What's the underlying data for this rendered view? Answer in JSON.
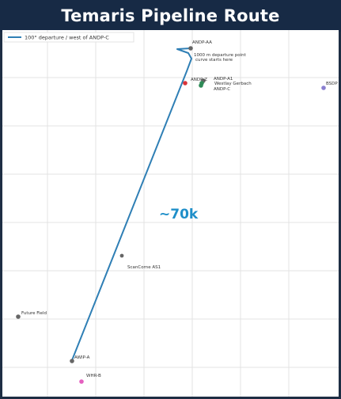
{
  "title": "Temaris Pipeline Route",
  "legend": {
    "label": "100° departure / west of ANDP-C"
  },
  "route": {
    "color": "#2f7fb5",
    "distance_label": "~70k",
    "distance_color": "#1f8fc9",
    "note": "1000 m departure point curve starts here"
  },
  "points": [
    {
      "id": "andp_aa",
      "label": "ANDP-AA",
      "color": "#666666"
    },
    {
      "id": "andp_a1",
      "label": "ANDP-A1",
      "color": "#666666"
    },
    {
      "id": "andp_c",
      "label": "ANDP-C",
      "color": "#2e8b57"
    },
    {
      "id": "westlay",
      "label": "Westlay Gerbach",
      "color": "#2e8b57"
    },
    {
      "id": "andp_z",
      "label": "ANDP-Z",
      "color": "#d9343a"
    },
    {
      "id": "bsdp",
      "label": "BSDP",
      "color": "#8a7fd0"
    },
    {
      "id": "scanlone",
      "label": "ScanCorne AS1",
      "color": "#666666"
    },
    {
      "id": "future",
      "label": "Future Field",
      "color": "#666666"
    },
    {
      "id": "awip_a",
      "label": "AWIP-A",
      "color": "#666666"
    },
    {
      "id": "whr_b",
      "label": "WHR-B",
      "color": "#e45fbf"
    }
  ]
}
